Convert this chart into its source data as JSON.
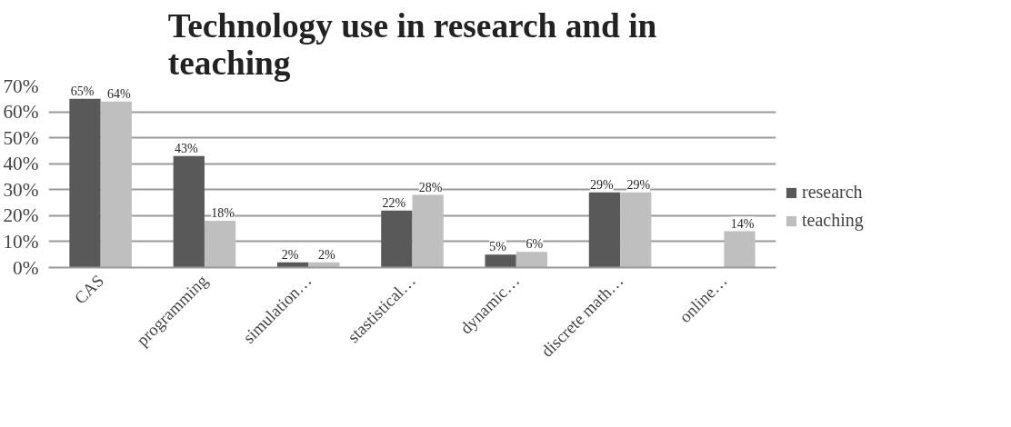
{
  "chart_data": {
    "type": "bar",
    "title": "Technology use in research and in teaching",
    "categories": [
      "CAS",
      "programming",
      "simulation…",
      "stastistical…",
      "dynamic…",
      "discrete math…",
      "online…"
    ],
    "series": [
      {
        "name": "research",
        "color": "#595959",
        "values": [
          65,
          43,
          2,
          22,
          5,
          29,
          null
        ],
        "value_labels": [
          "65%",
          "43%",
          "2%",
          "22%",
          "5%",
          "29%",
          null
        ]
      },
      {
        "name": "teaching",
        "color": "#bfbfbf",
        "values": [
          64,
          18,
          2,
          28,
          6,
          29,
          14
        ],
        "value_labels": [
          "64%",
          "18%",
          "2%",
          "28%",
          "6%",
          "29%",
          "14%"
        ]
      }
    ],
    "ylim": [
      0,
      70
    ],
    "yticks": [
      {
        "value": 0,
        "label": "0%"
      },
      {
        "value": 10,
        "label": "10%"
      },
      {
        "value": 20,
        "label": "20%"
      },
      {
        "value": 30,
        "label": "30%"
      },
      {
        "value": 40,
        "label": "40%"
      },
      {
        "value": 50,
        "label": "50%"
      },
      {
        "value": 60,
        "label": "60%"
      },
      {
        "value": 70,
        "label": "70%"
      }
    ],
    "grid": "y",
    "legend": "right"
  }
}
